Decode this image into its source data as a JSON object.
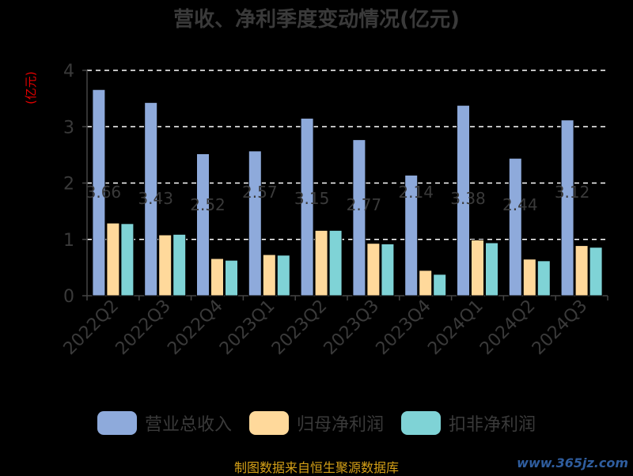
{
  "chart_data": {
    "type": "bar",
    "title": "营收、净利季度变动情况(亿元)",
    "unit_label": "(亿元)",
    "categories": [
      "2022Q2",
      "2022Q3",
      "2022Q4",
      "2023Q1",
      "2023Q2",
      "2023Q3",
      "2023Q4",
      "2024Q1",
      "2024Q2",
      "2024Q3"
    ],
    "series": [
      {
        "name": "营业总收入",
        "color": "#8eaadb",
        "values": [
          3.66,
          3.43,
          2.52,
          2.57,
          3.15,
          2.77,
          2.14,
          3.38,
          2.44,
          3.12
        ]
      },
      {
        "name": "归母净利润",
        "color": "#ffd99b",
        "values": [
          1.29,
          1.08,
          0.66,
          0.73,
          1.16,
          0.93,
          0.45,
          0.99,
          0.65,
          0.89
        ]
      },
      {
        "name": "扣非净利润",
        "color": "#7fd3d6",
        "values": [
          1.28,
          1.09,
          0.63,
          0.72,
          1.16,
          0.92,
          0.38,
          0.94,
          0.62,
          0.86
        ]
      }
    ],
    "bar_labels": [
      "3.66",
      "3.43",
      "2.52",
      "2.57",
      "3.15",
      "2.77",
      "2.14",
      "3.38",
      "2.44",
      "3.12"
    ],
    "ylim": [
      0,
      4
    ],
    "yticks": [
      0,
      1,
      2,
      3,
      4
    ],
    "grid": true,
    "legend_position": "bottom"
  },
  "footer": {
    "source": "制图数据来自恒生聚源数据库",
    "watermark": "www.365jz.com"
  }
}
